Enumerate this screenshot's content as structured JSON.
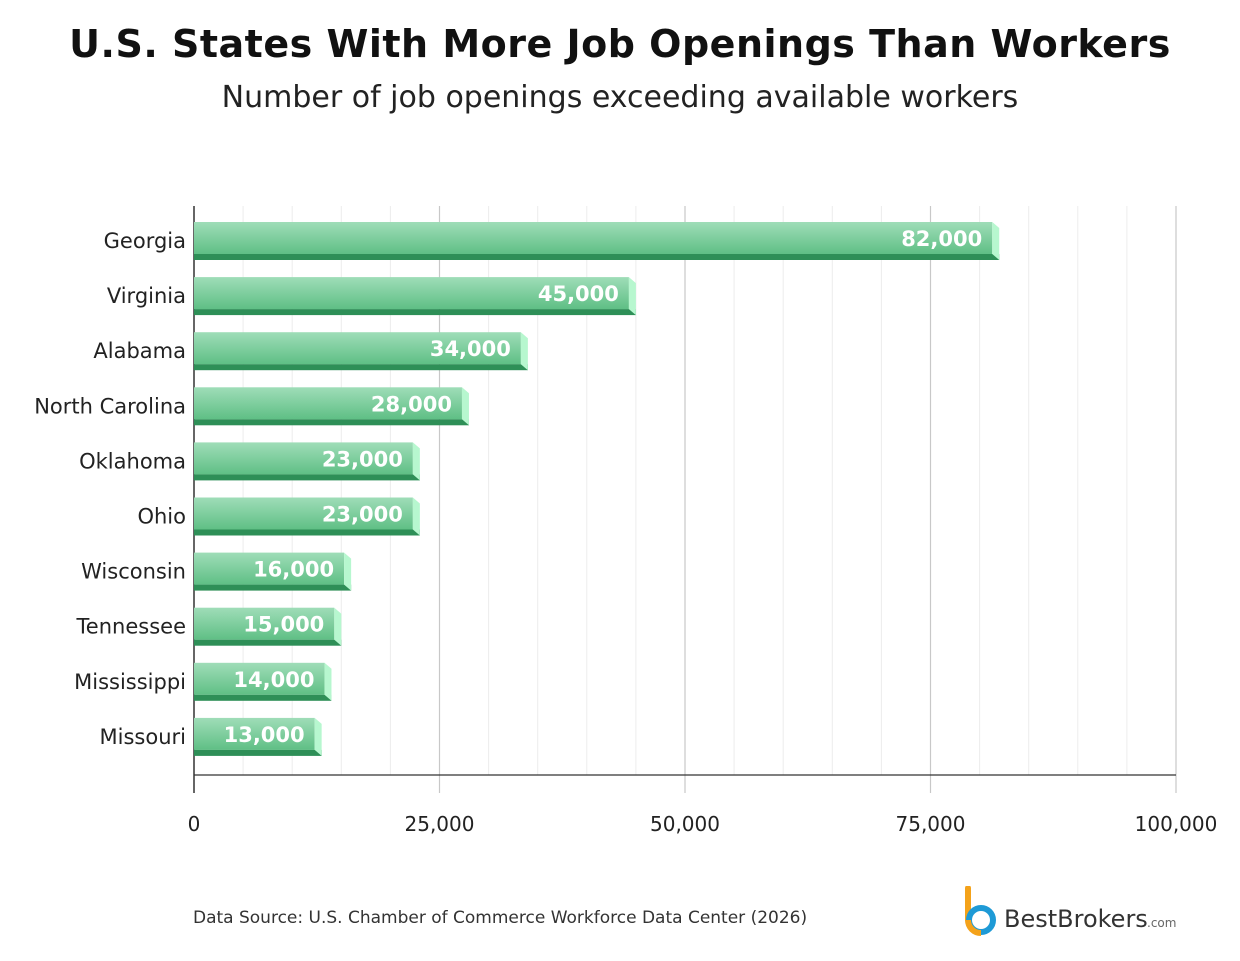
{
  "title": "U.S. States With More Job Openings Than Workers",
  "subtitle": "Number of job openings exceeding available workers",
  "source": "Data Source: U.S. Chamber of Commerce Workforce Data Center (2026)",
  "logo": {
    "name": "BestBrokers",
    "suffix": ".com",
    "icon": "bestbrokers-b-logo"
  },
  "colors": {
    "bar_top": "#9fddb8",
    "bar_bottom": "#5fbf85",
    "bar_base": "#2e8f57",
    "bar_cap": "#b7f7cf",
    "grid_major": "#c8c8c8",
    "grid_minor": "#ececec",
    "axis": "#333333"
  },
  "chart_data": {
    "type": "bar",
    "orientation": "horizontal",
    "categories": [
      "Georgia",
      "Virginia",
      "Alabama",
      "North Carolina",
      "Oklahoma",
      "Ohio",
      "Wisconsin",
      "Tennessee",
      "Mississippi",
      "Missouri"
    ],
    "values": [
      82000,
      45000,
      34000,
      28000,
      23000,
      23000,
      16000,
      15000,
      14000,
      13000
    ],
    "data_labels": [
      "82,000",
      "45,000",
      "34,000",
      "28,000",
      "23,000",
      "23,000",
      "16,000",
      "15,000",
      "14,000",
      "13,000"
    ],
    "xlim": [
      0,
      100000
    ],
    "x_ticks": [
      0,
      25000,
      50000,
      75000,
      100000
    ],
    "x_tick_labels": [
      "0",
      "25,000",
      "50,000",
      "75,000",
      "100,000"
    ],
    "minor_step": 5000,
    "grid": true
  }
}
